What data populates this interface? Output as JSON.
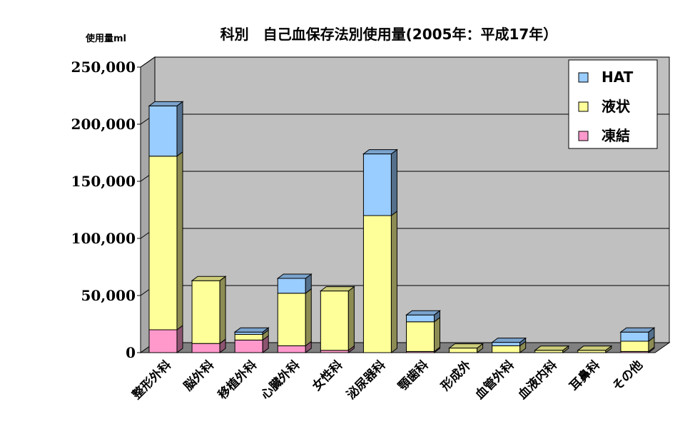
{
  "chart_data": {
    "type": "bar",
    "stacked": true,
    "three_d": true,
    "title": "科別　自己血保存法別使用量(2005年：平成17年）",
    "ylabel": "使用量ml",
    "xlabel": "",
    "ylim": [
      0,
      250000
    ],
    "yticks": [
      "0",
      "50,000",
      "100,000",
      "150,000",
      "200,000",
      "250,000"
    ],
    "grid": true,
    "legend_position": "top-right",
    "categories": [
      "整形外科",
      "脳外科",
      "移植外科",
      "心臓外科",
      "女性科",
      "泌尿器科",
      "顎歯科",
      "形成外",
      "血管外科",
      "血液内科",
      "耳鼻科",
      "その他"
    ],
    "series": [
      {
        "name": "凍結",
        "color": "#FF99CC",
        "values": [
          20000,
          8000,
          11000,
          6000,
          2000,
          0,
          1000,
          0,
          0,
          0,
          0,
          1000
        ]
      },
      {
        "name": "液状",
        "color": "#FFFF99",
        "values": [
          152000,
          55000,
          5000,
          46000,
          52000,
          120000,
          26000,
          4000,
          6000,
          2000,
          2000,
          9000
        ]
      },
      {
        "name": "HAT",
        "color": "#99CCFF",
        "values": [
          44000,
          0,
          2000,
          13000,
          0,
          54000,
          6000,
          0,
          3000,
          0,
          0,
          8000
        ]
      }
    ]
  }
}
